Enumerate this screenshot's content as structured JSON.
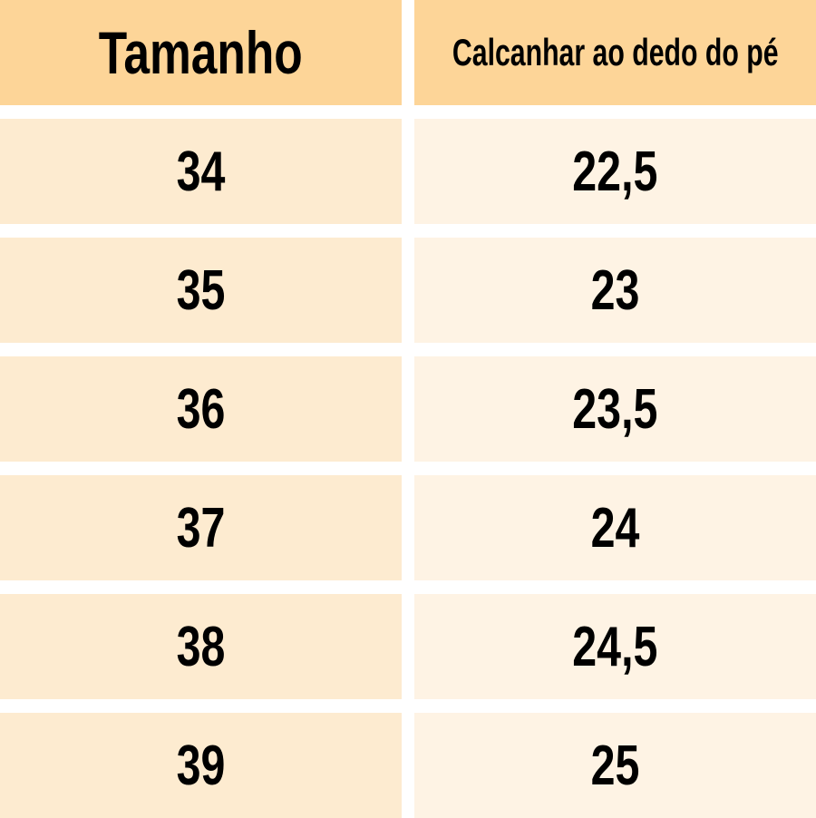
{
  "table": {
    "headers": [
      "Tamanho",
      "Calcanhar ao dedo do pé"
    ],
    "rows": [
      [
        "34",
        "22,5"
      ],
      [
        "35",
        "23"
      ],
      [
        "36",
        "23,5"
      ],
      [
        "37",
        "24"
      ],
      [
        "38",
        "24,5"
      ],
      [
        "39",
        "25"
      ]
    ]
  },
  "colors": {
    "header": "#fdd598",
    "left_cell": "#fdebd0",
    "right_cell": "#fef3e4"
  }
}
